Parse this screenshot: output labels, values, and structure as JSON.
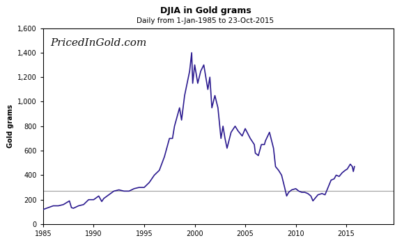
{
  "chart_data": {
    "type": "line",
    "title": "DJIA in Gold grams",
    "subtitle": "Daily from 1-Jan-1985 to 23-Oct-2015",
    "y_label": "Gold grams",
    "annotation": "PricedInGold.com",
    "x": [
      1985.0,
      1985.5,
      1986.0,
      1986.5,
      1987.0,
      1987.6,
      1987.8,
      1988.0,
      1988.5,
      1989.0,
      1989.5,
      1990.0,
      1990.5,
      1990.8,
      1991.0,
      1991.5,
      1992.0,
      1992.5,
      1993.0,
      1993.5,
      1994.0,
      1994.5,
      1995.0,
      1995.5,
      1996.0,
      1996.5,
      1997.0,
      1997.5,
      1997.8,
      1998.0,
      1998.5,
      1998.7,
      1999.0,
      1999.5,
      1999.7,
      1999.8,
      2000.0,
      2000.3,
      2000.6,
      2000.9,
      2001.0,
      2001.3,
      2001.5,
      2001.7,
      2002.0,
      2002.3,
      2002.6,
      2002.8,
      2003.0,
      2003.2,
      2003.6,
      2004.0,
      2004.3,
      2004.7,
      2005.0,
      2005.5,
      2005.9,
      2006.0,
      2006.3,
      2006.6,
      2006.9,
      2007.0,
      2007.4,
      2007.8,
      2008.0,
      2008.3,
      2008.6,
      2008.9,
      2009.1,
      2009.3,
      2009.6,
      2010.0,
      2010.3,
      2010.6,
      2010.9,
      2011.2,
      2011.5,
      2011.7,
      2011.9,
      2012.2,
      2012.6,
      2012.9,
      2013.2,
      2013.5,
      2013.8,
      2014.0,
      2014.3,
      2014.6,
      2014.9,
      2015.1,
      2015.4,
      2015.6,
      2015.7,
      2015.81
    ],
    "values": [
      120,
      135,
      150,
      150,
      160,
      190,
      135,
      130,
      150,
      160,
      200,
      200,
      230,
      185,
      210,
      240,
      270,
      280,
      270,
      270,
      290,
      300,
      300,
      340,
      400,
      440,
      550,
      700,
      700,
      800,
      950,
      850,
      1050,
      1250,
      1400,
      1150,
      1300,
      1150,
      1250,
      1300,
      1250,
      1100,
      1200,
      950,
      1050,
      950,
      700,
      800,
      700,
      620,
      750,
      800,
      760,
      720,
      780,
      700,
      650,
      580,
      560,
      650,
      650,
      680,
      750,
      620,
      470,
      440,
      400,
      300,
      230,
      260,
      280,
      290,
      270,
      260,
      260,
      250,
      230,
      190,
      210,
      240,
      250,
      240,
      300,
      360,
      370,
      400,
      390,
      420,
      440,
      450,
      490,
      470,
      430,
      470
    ],
    "color": "#2b1a8f",
    "hline": {
      "value": 270,
      "color": "#a0a0a0"
    },
    "xlim": [
      1985,
      2019.7
    ],
    "xticks": [
      1985,
      1990,
      1995,
      2000,
      2005,
      2010,
      2015
    ],
    "ylim": [
      0,
      1600
    ],
    "yticks": [
      0,
      200,
      {
        "value": 400,
        "label": "400"
      },
      600,
      800,
      {
        "value": 1000,
        "label": "1,000"
      },
      {
        "value": 1200,
        "label": "1,200"
      },
      {
        "value": 1400,
        "label": "1,400"
      },
      {
        "value": 1600,
        "label": "1,600"
      }
    ],
    "grid": false
  }
}
